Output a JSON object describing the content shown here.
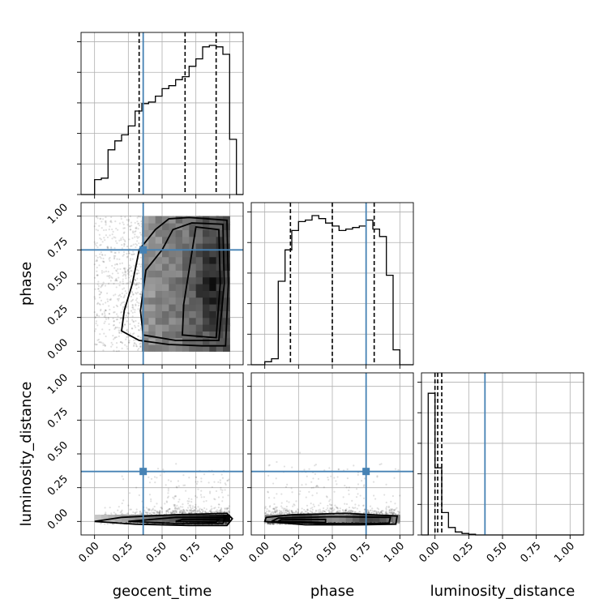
{
  "chart_data": {
    "type": "corner",
    "parameters": [
      "geocent_time",
      "phase",
      "luminosity_distance"
    ],
    "grid": true,
    "truth_color": "#4682b4",
    "truths": {
      "geocent_time": 0.36,
      "phase": 0.75,
      "luminosity_distance": 0.37
    },
    "quantiles": {
      "geocent_time": [
        0.33,
        0.67,
        0.9
      ],
      "phase": [
        0.19,
        0.5,
        0.81
      ],
      "luminosity_distance": [
        0.0,
        0.02,
        0.05
      ]
    },
    "axis_ranges": {
      "geocent_time": [
        -0.1,
        1.1
      ],
      "phase": [
        -0.1,
        1.1
      ],
      "luminosity_distance": [
        -0.1,
        1.1
      ]
    },
    "ticks": [
      0.0,
      0.25,
      0.5,
      0.75,
      1.0
    ],
    "tick_labels": [
      "0.00",
      "0.25",
      "0.50",
      "0.75",
      "1.00"
    ],
    "histograms": {
      "geocent_time": {
        "bin_edges": [
          -0.1,
          -0.05,
          0.0,
          0.05,
          0.1,
          0.15,
          0.2,
          0.25,
          0.3,
          0.35,
          0.4,
          0.45,
          0.5,
          0.55,
          0.6,
          0.65,
          0.7,
          0.75,
          0.8,
          0.85,
          0.9,
          0.95,
          1.0,
          1.05,
          1.1
        ],
        "counts": [
          0,
          0,
          0.1,
          0.11,
          0.3,
          0.36,
          0.4,
          0.46,
          0.56,
          0.61,
          0.62,
          0.66,
          0.71,
          0.73,
          0.77,
          0.79,
          0.86,
          0.91,
          0.99,
          1.0,
          0.99,
          0.94,
          0.37,
          0
        ]
      },
      "phase": {
        "bin_edges": [
          -0.1,
          -0.05,
          0.0,
          0.05,
          0.1,
          0.15,
          0.2,
          0.25,
          0.3,
          0.35,
          0.4,
          0.45,
          0.5,
          0.55,
          0.6,
          0.65,
          0.7,
          0.75,
          0.8,
          0.85,
          0.9,
          0.95,
          1.0,
          1.05,
          1.1
        ],
        "counts": [
          0,
          0,
          0.02,
          0.04,
          0.56,
          0.77,
          0.9,
          0.96,
          0.97,
          1.0,
          0.98,
          0.95,
          0.93,
          0.9,
          0.91,
          0.92,
          0.93,
          0.97,
          0.91,
          0.86,
          0.6,
          0.1,
          0,
          0
        ]
      },
      "luminosity_distance": {
        "bin_edges": [
          -0.1,
          -0.05,
          0.0,
          0.05,
          0.1,
          0.15,
          0.2,
          0.25,
          0.3,
          0.35,
          0.4,
          0.45,
          0.5,
          0.55,
          0.6,
          0.65,
          0.7,
          0.75,
          0.8,
          0.85,
          0.9,
          0.95,
          1.0,
          1.05,
          1.1
        ],
        "counts": [
          0,
          0.95,
          0.45,
          0.15,
          0.05,
          0.02,
          0.01,
          0.005,
          0,
          0,
          0,
          0,
          0,
          0,
          0,
          0,
          0,
          0,
          0,
          0,
          0,
          0,
          0,
          0
        ]
      }
    },
    "contour_panels": [
      {
        "x": "geocent_time",
        "y": "phase"
      },
      {
        "x": "geocent_time",
        "y": "luminosity_distance"
      },
      {
        "x": "phase",
        "y": "luminosity_distance"
      }
    ]
  }
}
